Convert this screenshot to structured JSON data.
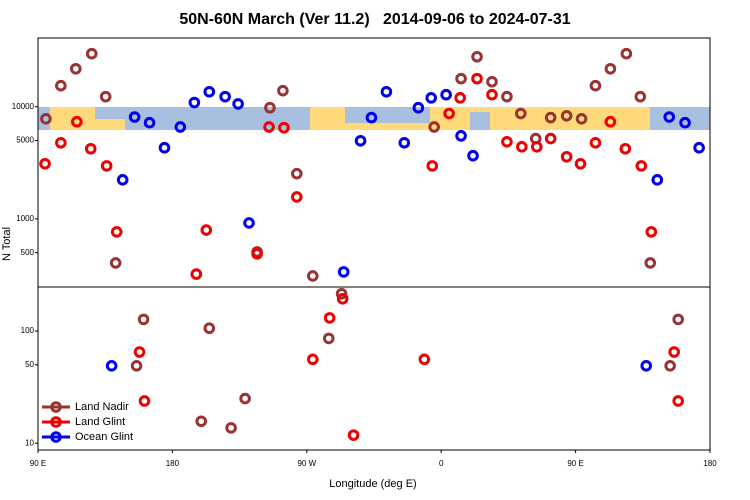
{
  "chart_data": {
    "type": "scatter",
    "title": "50N-60N March (Ver 11.2)   2014-09-06 to 2024-07-31",
    "x_label": "Longitude (deg E)",
    "y_label": "N Total",
    "log_y": true,
    "legend": "bottom-left",
    "xlim": [
      90,
      540
    ],
    "xticks": [
      {
        "value": 90,
        "label": "90 E"
      },
      {
        "value": 180,
        "label": "180"
      },
      {
        "value": 270,
        "label": "90 W"
      },
      {
        "value": 360,
        "label": "0"
      },
      {
        "value": 450,
        "label": "90 E"
      },
      {
        "value": 540,
        "label": "180"
      }
    ],
    "ylim": [
      8.7,
      41000
    ],
    "yticks": [
      10,
      50,
      100,
      500,
      1000,
      5000,
      10000
    ],
    "series": [
      {
        "name": "Land Nadir",
        "color": "#993333",
        "x": [
          95.3,
          105.3,
          115.3,
          126,
          135.3,
          142,
          160.7,
          156,
          199.3,
          204.7,
          219.3,
          228.7,
          236.7,
          245.3,
          254,
          263.3,
          274,
          284.7,
          293.3,
          355.3,
          373.3,
          384,
          394,
          404,
          413.3,
          423.3,
          433.3,
          444,
          454,
          463.3,
          473.3,
          484,
          493.3,
          500,
          518.7,
          513.3
        ],
        "values": [
          7800,
          15400,
          21800,
          29700,
          12300,
          405,
          127,
          49,
          15.7,
          106,
          13.7,
          25,
          508,
          9800,
          13900,
          2530,
          310,
          86,
          215,
          6600,
          17800,
          27900,
          16700,
          12300,
          8700,
          5200,
          8000,
          8300,
          7800,
          15400,
          21800,
          29700,
          12300,
          405,
          127,
          49
        ]
      },
      {
        "name": "Land Glint",
        "color": "#ee0000",
        "x": [
          94.7,
          105.3,
          116,
          125.3,
          136,
          142.7,
          158,
          161.3,
          196,
          202.7,
          236.7,
          244.7,
          254.7,
          263.3,
          274,
          285.3,
          294,
          301.3,
          348.7,
          354,
          365.3,
          372.7,
          384,
          394,
          404,
          414,
          424,
          433.3,
          444,
          453.3,
          463.3,
          473.3,
          483.3,
          494,
          500.7,
          516,
          518.7
        ],
        "values": [
          3100,
          4770,
          7350,
          4220,
          2970,
          766,
          65,
          23.8,
          322,
          795,
          488,
          6600,
          6500,
          1570,
          56,
          131,
          194,
          11.8,
          56,
          2970,
          8700,
          12000,
          17800,
          12800,
          4870,
          4390,
          4390,
          5200,
          3580,
          3100,
          4770,
          7350,
          4220,
          2970,
          766,
          65,
          23.8
        ]
      },
      {
        "name": "Ocean Glint",
        "color": "#0000ee",
        "x": [
          139.3,
          146.7,
          154.7,
          164.7,
          174.7,
          185.3,
          194.7,
          204.7,
          215.3,
          224,
          231.3,
          294.7,
          306,
          313.3,
          323.3,
          335.3,
          344.7,
          353.3,
          363.3,
          373.3,
          381.3,
          497.3,
          504.7,
          512.7,
          523.3,
          532.7
        ],
        "values": [
          49,
          2230,
          8100,
          7200,
          4310,
          6600,
          10900,
          13600,
          12300,
          10600,
          920,
          337,
          4970,
          8000,
          13600,
          4770,
          9800,
          12000,
          12800,
          5500,
          3660,
          49,
          2230,
          8100,
          7200,
          4310
        ]
      }
    ]
  }
}
